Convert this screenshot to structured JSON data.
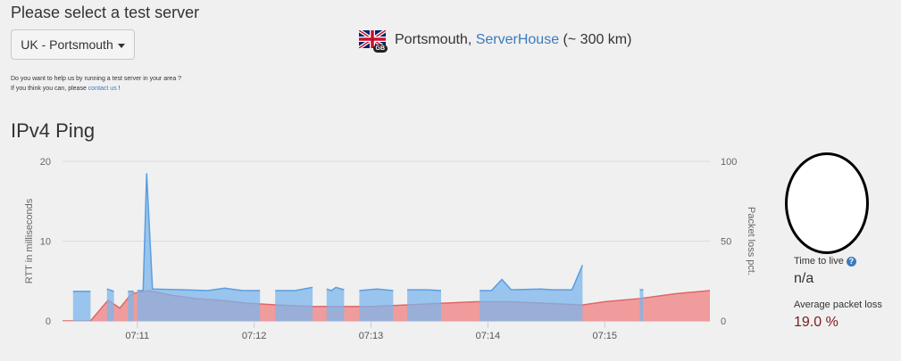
{
  "header": {
    "title": "Please select a test server"
  },
  "server_select": {
    "selected": "UK - Portsmouth"
  },
  "help": {
    "line1": "Do you want to help us by running a test server in your area ?",
    "line2_prefix": "If you think you can, please ",
    "line2_link": "contact us",
    "line2_suffix": " !"
  },
  "location": {
    "flag_icon": "uk-flag-icon",
    "country_code": "GB",
    "city": "Portsmouth,",
    "provider": "ServerHouse",
    "distance": "(~ 300 km)"
  },
  "section": {
    "title": "IPv4 Ping"
  },
  "stats": {
    "ttl_label": "Time to live",
    "ttl_value": "n/a",
    "loss_label": "Average packet loss",
    "loss_value": "19.0 %"
  },
  "colors": {
    "rtt": "#7cb5ec",
    "loss": "#f08080",
    "link": "#3a7bbf",
    "loss_value": "#7a1b1b"
  },
  "chart_data": {
    "type": "area",
    "ylabel": "RTT in milliseconds",
    "y2label": "Packet loss pct.",
    "ylim": [
      0,
      20
    ],
    "y2lim": [
      0,
      100
    ],
    "yticks": [
      "0",
      "10",
      "20"
    ],
    "y2ticks": [
      "0",
      "50",
      "100"
    ],
    "xlim": [
      10.36,
      15.9
    ],
    "xticks": [
      {
        "t": 11.0,
        "label": "07:11"
      },
      {
        "t": 12.0,
        "label": "07:12"
      },
      {
        "t": 13.0,
        "label": "07:13"
      },
      {
        "t": 14.0,
        "label": "07:14"
      },
      {
        "t": 15.0,
        "label": "07:15"
      }
    ],
    "rtt_segments": [
      [
        [
          10.45,
          3.7
        ],
        [
          10.6,
          3.7
        ]
      ],
      [
        [
          10.74,
          4.0
        ],
        [
          10.8,
          3.7
        ]
      ],
      [
        [
          10.92,
          3.7
        ],
        [
          10.97,
          3.7
        ]
      ],
      [
        [
          11.0,
          3.8
        ],
        [
          11.05,
          3.8
        ],
        [
          11.08,
          18.5
        ],
        [
          11.13,
          4.0
        ],
        [
          11.4,
          3.9
        ],
        [
          11.6,
          3.8
        ],
        [
          11.75,
          4.1
        ],
        [
          11.9,
          3.8
        ],
        [
          12.05,
          3.8
        ]
      ],
      [
        [
          12.18,
          3.8
        ],
        [
          12.35,
          3.8
        ],
        [
          12.5,
          4.2
        ]
      ],
      [
        [
          12.62,
          4.0
        ],
        [
          12.66,
          3.8
        ],
        [
          12.7,
          4.2
        ],
        [
          12.77,
          3.9
        ]
      ],
      [
        [
          12.9,
          3.8
        ],
        [
          13.05,
          4.0
        ],
        [
          13.19,
          3.8
        ]
      ],
      [
        [
          13.31,
          3.9
        ],
        [
          13.48,
          3.9
        ],
        [
          13.6,
          3.8
        ]
      ],
      [
        [
          13.93,
          3.8
        ],
        [
          14.03,
          3.8
        ],
        [
          14.12,
          5.2
        ],
        [
          14.2,
          3.9
        ],
        [
          14.45,
          4.0
        ],
        [
          14.55,
          3.9
        ],
        [
          14.72,
          3.9
        ],
        [
          14.81,
          7.0
        ]
      ],
      [
        [
          15.3,
          3.9
        ],
        [
          15.33,
          3.9
        ]
      ]
    ],
    "loss_series": [
      [
        10.36,
        0
      ],
      [
        10.6,
        0
      ],
      [
        10.75,
        13
      ],
      [
        10.85,
        8
      ],
      [
        10.95,
        17
      ],
      [
        11.1,
        19
      ],
      [
        11.3,
        16
      ],
      [
        11.5,
        14
      ],
      [
        11.7,
        13
      ],
      [
        11.95,
        11
      ],
      [
        12.2,
        10
      ],
      [
        12.5,
        9
      ],
      [
        12.8,
        9
      ],
      [
        13.0,
        9
      ],
      [
        13.3,
        10
      ],
      [
        13.6,
        11
      ],
      [
        13.9,
        12
      ],
      [
        14.2,
        12
      ],
      [
        14.5,
        11
      ],
      [
        14.81,
        10
      ],
      [
        15.0,
        12
      ],
      [
        15.3,
        14
      ],
      [
        15.6,
        17
      ],
      [
        15.9,
        19
      ]
    ]
  }
}
